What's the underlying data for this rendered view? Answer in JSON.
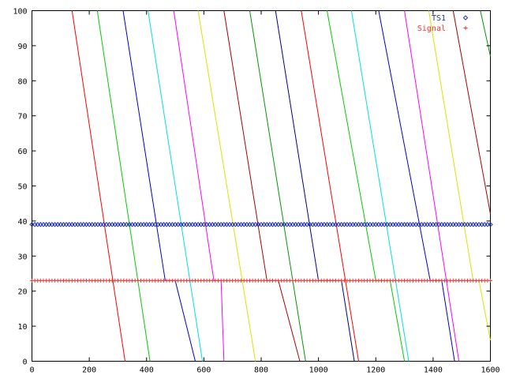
{
  "chart_data": {
    "type": "line",
    "title": "",
    "xlabel": "",
    "ylabel": "",
    "xlim": [
      0,
      1600
    ],
    "ylim": [
      0,
      100
    ],
    "x_ticks": [
      "0",
      "200",
      "400",
      "600",
      "800",
      "1000",
      "1200",
      "1400",
      "1600"
    ],
    "y_ticks": [
      "0",
      "10",
      "20",
      "30",
      "40",
      "50",
      "60",
      "70",
      "80",
      "90",
      "100"
    ],
    "grid": false,
    "legend_position": "top-right",
    "legend": [
      {
        "label": "TS1",
        "color": "#1f2fb0",
        "marker": "diamond"
      },
      {
        "label": "Signal",
        "color": "#ff3030",
        "marker": "plus"
      }
    ],
    "series": [
      {
        "name": "TS1",
        "color": "#1f2fb0",
        "kind": "markers",
        "marker": "diamond",
        "y": 39,
        "x_start": 0,
        "x_end": 1600,
        "x_step": 10
      },
      {
        "name": "Signal",
        "color": "#ff3030",
        "kind": "markers",
        "marker": "plus",
        "y": 23,
        "x_start": 0,
        "x_end": 1600,
        "x_step": 10
      },
      {
        "color": "#ff0000",
        "kind": "line",
        "points": [
          [
            140,
            100
          ],
          [
            325,
            0
          ]
        ]
      },
      {
        "color": "#00cc00",
        "kind": "line",
        "points": [
          [
            228,
            100
          ],
          [
            412,
            0
          ]
        ]
      },
      {
        "color": "#0000cc",
        "kind": "line",
        "points": [
          [
            318,
            100
          ],
          [
            465,
            23
          ],
          [
            500,
            23
          ],
          [
            570,
            0
          ]
        ]
      },
      {
        "color": "#00e0e0",
        "kind": "line",
        "points": [
          [
            405,
            100
          ],
          [
            595,
            0
          ]
        ]
      },
      {
        "color": "#ff00ff",
        "kind": "line",
        "points": [
          [
            495,
            100
          ],
          [
            635,
            23
          ],
          [
            660,
            23
          ],
          [
            670,
            0
          ]
        ]
      },
      {
        "color": "#e0e000",
        "kind": "line",
        "points": [
          [
            580,
            100
          ],
          [
            780,
            0
          ]
        ]
      },
      {
        "color": "#aa0000",
        "kind": "line",
        "points": [
          [
            670,
            100
          ],
          [
            820,
            23
          ],
          [
            860,
            23
          ],
          [
            935,
            0
          ]
        ]
      },
      {
        "color": "#009900",
        "kind": "line",
        "points": [
          [
            760,
            100
          ],
          [
            955,
            0
          ]
        ]
      },
      {
        "color": "#000088",
        "kind": "line",
        "points": [
          [
            850,
            100
          ],
          [
            1000,
            23
          ],
          [
            1080,
            23
          ],
          [
            1125,
            0
          ]
        ]
      },
      {
        "color": "#ff0000",
        "kind": "line",
        "points": [
          [
            940,
            100
          ],
          [
            1140,
            0
          ]
        ]
      },
      {
        "color": "#00cc00",
        "kind": "line",
        "points": [
          [
            1030,
            100
          ],
          [
            1200,
            23
          ],
          [
            1250,
            23
          ],
          [
            1300,
            0
          ]
        ]
      },
      {
        "color": "#00e0e0",
        "kind": "line",
        "points": [
          [
            1115,
            100
          ],
          [
            1315,
            0
          ]
        ]
      },
      {
        "color": "#0000cc",
        "kind": "line",
        "points": [
          [
            1210,
            100
          ],
          [
            1390,
            23
          ],
          [
            1430,
            23
          ],
          [
            1475,
            0
          ]
        ]
      },
      {
        "color": "#ff00ff",
        "kind": "line",
        "points": [
          [
            1300,
            100
          ],
          [
            1490,
            0
          ]
        ]
      },
      {
        "color": "#e0e000",
        "kind": "line",
        "points": [
          [
            1385,
            100
          ],
          [
            1540,
            23
          ],
          [
            1560,
            23
          ],
          [
            1600,
            6
          ]
        ]
      },
      {
        "color": "#aa0000",
        "kind": "line",
        "points": [
          [
            1470,
            100
          ],
          [
            1600,
            42
          ]
        ]
      },
      {
        "color": "#009900",
        "kind": "line",
        "points": [
          [
            1565,
            100
          ],
          [
            1600,
            87
          ]
        ]
      }
    ]
  }
}
